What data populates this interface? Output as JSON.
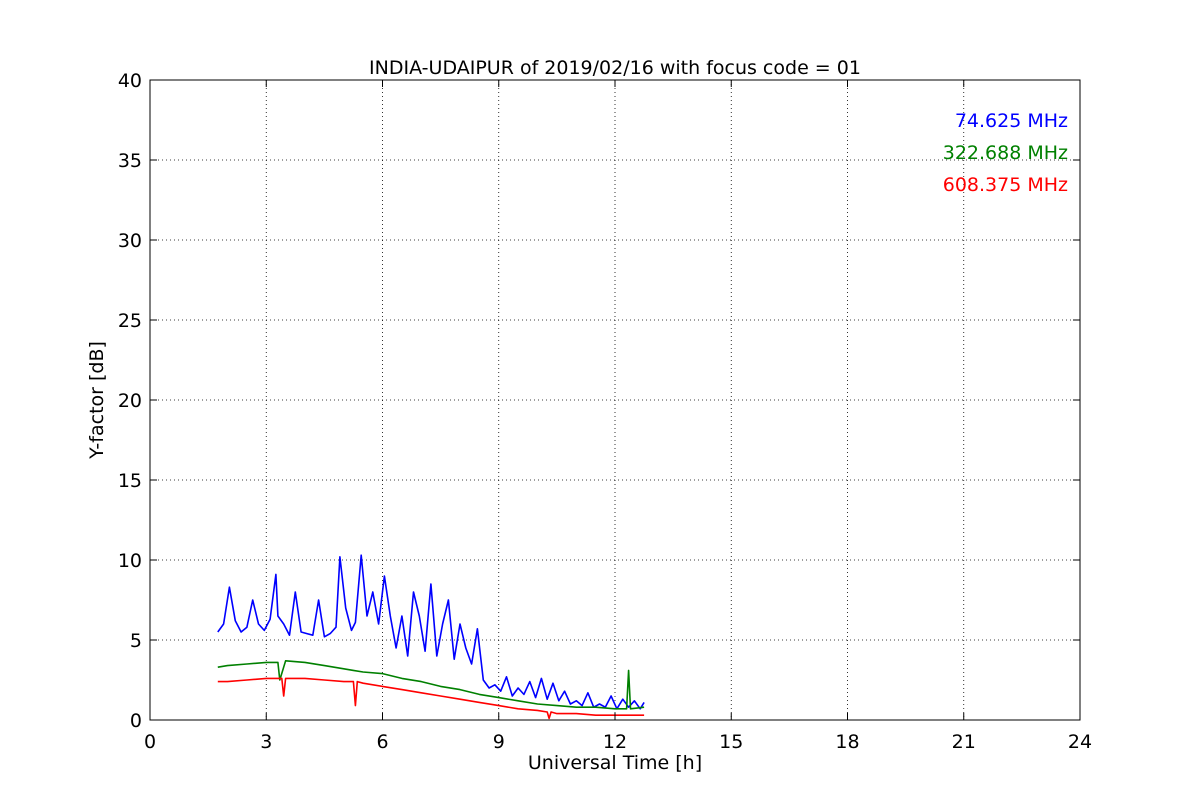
{
  "chart_data": {
    "type": "line",
    "title": "INDIA-UDAIPUR of 2019/02/16 with focus code = 01",
    "xlabel": "Universal Time [h]",
    "ylabel": "Y-factor [dB]",
    "xlim": [
      0,
      24
    ],
    "ylim": [
      0,
      40
    ],
    "xticks": [
      "0",
      "3",
      "6",
      "9",
      "12",
      "15",
      "18",
      "21",
      "24"
    ],
    "yticks": [
      "0",
      "5",
      "10",
      "15",
      "20",
      "25",
      "30",
      "35",
      "40"
    ],
    "grid": true,
    "legend_position": "top-right",
    "series": [
      {
        "name": "74.625 MHz",
        "color": "#0000ff",
        "x": [
          1.75,
          1.9,
          2.05,
          2.2,
          2.35,
          2.5,
          2.65,
          2.8,
          2.95,
          3.1,
          3.25,
          3.3,
          3.45,
          3.6,
          3.75,
          3.9,
          4.05,
          4.2,
          4.35,
          4.5,
          4.65,
          4.8,
          4.9,
          5.05,
          5.2,
          5.3,
          5.45,
          5.6,
          5.75,
          5.9,
          6.05,
          6.2,
          6.35,
          6.5,
          6.65,
          6.8,
          6.95,
          7.1,
          7.25,
          7.4,
          7.55,
          7.7,
          7.85,
          8.0,
          8.15,
          8.3,
          8.45,
          8.6,
          8.75,
          8.9,
          9.05,
          9.2,
          9.35,
          9.5,
          9.65,
          9.8,
          9.95,
          10.1,
          10.25,
          10.4,
          10.55,
          10.7,
          10.85,
          11.0,
          11.15,
          11.3,
          11.45,
          11.6,
          11.75,
          11.9,
          12.05,
          12.2,
          12.35,
          12.5,
          12.65,
          12.75
        ],
        "y": [
          5.5,
          6.0,
          8.3,
          6.2,
          5.5,
          5.8,
          7.5,
          6.0,
          5.6,
          6.3,
          9.1,
          6.5,
          6.0,
          5.3,
          8.0,
          5.5,
          5.4,
          5.3,
          7.5,
          5.2,
          5.4,
          5.8,
          10.2,
          7.0,
          5.6,
          6.1,
          10.3,
          6.5,
          8.0,
          6.0,
          9.0,
          6.5,
          4.5,
          6.5,
          4.0,
          8.0,
          6.5,
          4.3,
          8.5,
          4.0,
          6.0,
          7.5,
          3.8,
          6.0,
          4.5,
          3.5,
          5.7,
          2.5,
          2.0,
          2.2,
          1.8,
          2.7,
          1.5,
          2.0,
          1.6,
          2.4,
          1.4,
          2.6,
          1.3,
          2.3,
          1.2,
          1.8,
          1.0,
          1.2,
          0.9,
          1.7,
          0.8,
          1.0,
          0.8,
          1.5,
          0.7,
          1.3,
          0.8,
          1.2,
          0.7,
          1.1
        ]
      },
      {
        "name": "322.688 MHz",
        "color": "#008000",
        "x": [
          1.75,
          2.0,
          2.5,
          3.0,
          3.3,
          3.35,
          3.5,
          4.0,
          4.5,
          5.0,
          5.25,
          5.5,
          6.0,
          6.5,
          7.0,
          7.5,
          8.0,
          8.5,
          9.0,
          9.5,
          10.0,
          10.5,
          11.0,
          11.5,
          12.0,
          12.3,
          12.35,
          12.4,
          12.75
        ],
        "y": [
          3.3,
          3.4,
          3.5,
          3.6,
          3.6,
          2.5,
          3.7,
          3.6,
          3.4,
          3.2,
          3.1,
          3.0,
          2.9,
          2.6,
          2.4,
          2.1,
          1.9,
          1.6,
          1.4,
          1.2,
          1.0,
          0.9,
          0.8,
          0.8,
          0.7,
          0.7,
          3.1,
          0.7,
          0.8
        ]
      },
      {
        "name": "608.375 MHz",
        "color": "#ff0000",
        "x": [
          1.75,
          2.0,
          2.5,
          3.0,
          3.4,
          3.45,
          3.5,
          4.0,
          4.5,
          5.0,
          5.25,
          5.3,
          5.35,
          5.5,
          6.0,
          6.5,
          7.0,
          7.5,
          8.0,
          8.5,
          9.0,
          9.5,
          10.0,
          10.25,
          10.3,
          10.35,
          10.5,
          11.0,
          11.5,
          12.0,
          12.5,
          12.75
        ],
        "y": [
          2.4,
          2.4,
          2.5,
          2.6,
          2.6,
          1.5,
          2.6,
          2.6,
          2.5,
          2.4,
          2.4,
          0.9,
          2.4,
          2.3,
          2.1,
          1.9,
          1.7,
          1.5,
          1.3,
          1.1,
          0.9,
          0.7,
          0.6,
          0.5,
          0.1,
          0.5,
          0.4,
          0.4,
          0.3,
          0.3,
          0.3,
          0.3
        ]
      }
    ]
  }
}
